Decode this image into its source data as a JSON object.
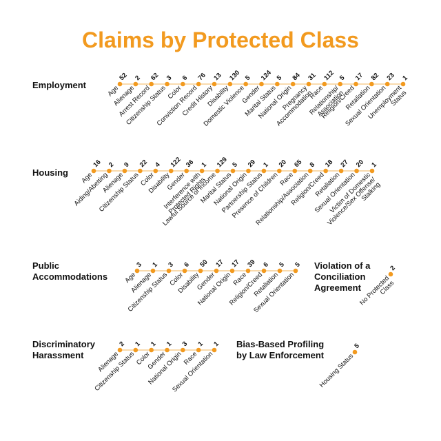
{
  "title": "Claims by Protected Class",
  "colors": {
    "accent": "#f29a1f",
    "line": "#f5c47a",
    "text": "#111111"
  },
  "chart_data": {
    "type": "dot-plot",
    "title": "Claims by Protected Class",
    "groups": [
      {
        "name": "Employment",
        "label_lines": [
          "Employment"
        ],
        "points": [
          {
            "label_lines": [
              "Age"
            ],
            "value": 52
          },
          {
            "label_lines": [
              "Alienage"
            ],
            "value": 2
          },
          {
            "label_lines": [
              "Arrest Record"
            ],
            "value": 62
          },
          {
            "label_lines": [
              "Citizenship Status"
            ],
            "value": 3
          },
          {
            "label_lines": [
              "Color"
            ],
            "value": 6
          },
          {
            "label_lines": [
              "Conviction Record"
            ],
            "value": 76
          },
          {
            "label_lines": [
              "Credit History"
            ],
            "value": 13
          },
          {
            "label_lines": [
              "Disability"
            ],
            "value": 130
          },
          {
            "label_lines": [
              "Domestic Violence"
            ],
            "value": 5
          },
          {
            "label_lines": [
              "Gender"
            ],
            "value": 124
          },
          {
            "label_lines": [
              "Marital Status"
            ],
            "value": 5
          },
          {
            "label_lines": [
              "National Origin"
            ],
            "value": 84
          },
          {
            "label_lines": [
              "Pregnancy",
              "Accommodation"
            ],
            "value": 31
          },
          {
            "label_lines": [
              "Race"
            ],
            "value": 112
          },
          {
            "label_lines": [
              "Relationship/",
              "Association"
            ],
            "value": 5
          },
          {
            "label_lines": [
              "Religion/Creed"
            ],
            "value": 17
          },
          {
            "label_lines": [
              "Retaliation"
            ],
            "value": 82
          },
          {
            "label_lines": [
              "Sexual Orientation"
            ],
            "value": 23
          },
          {
            "label_lines": [
              "Unemployment",
              "Status"
            ],
            "value": 1
          }
        ]
      },
      {
        "name": "Housing",
        "label_lines": [
          "Housing"
        ],
        "points": [
          {
            "label_lines": [
              "Age"
            ],
            "value": 16
          },
          {
            "label_lines": [
              "Aiding/Abetting"
            ],
            "value": 2
          },
          {
            "label_lines": [
              "Alienage"
            ],
            "value": 9
          },
          {
            "label_lines": [
              "Citizenship Status"
            ],
            "value": 22
          },
          {
            "label_lines": [
              "Color"
            ],
            "value": 4
          },
          {
            "label_lines": [
              "Disability"
            ],
            "value": 122
          },
          {
            "label_lines": [
              "Gender"
            ],
            "value": 36
          },
          {
            "label_lines": [
              "Interference with",
              "Protected Rights"
            ],
            "value": 1
          },
          {
            "label_lines": [
              "Lawful Source of Income"
            ],
            "value": 129
          },
          {
            "label_lines": [
              "Marital Status"
            ],
            "value": 5
          },
          {
            "label_lines": [
              "National Origin"
            ],
            "value": 29
          },
          {
            "label_lines": [
              "Partnership Status"
            ],
            "value": 1
          },
          {
            "label_lines": [
              "Presence of Children"
            ],
            "value": 20
          },
          {
            "label_lines": [
              "Race"
            ],
            "value": 65
          },
          {
            "label_lines": [
              "Relationship/Association"
            ],
            "value": 8
          },
          {
            "label_lines": [
              "Religion/Creed"
            ],
            "value": 18
          },
          {
            "label_lines": [
              "Retaliation"
            ],
            "value": 27
          },
          {
            "label_lines": [
              "Sexual Orientation"
            ],
            "value": 20
          },
          {
            "label_lines": [
              "Victim of Domestic",
              "Violence/Sex Offense/",
              "Stalking"
            ],
            "value": 1
          }
        ]
      },
      {
        "name": "Public Accommodations",
        "label_lines": [
          "Public",
          "Accommodations"
        ],
        "points": [
          {
            "label_lines": [
              "Age"
            ],
            "value": 3
          },
          {
            "label_lines": [
              "Alienage"
            ],
            "value": 1
          },
          {
            "label_lines": [
              "Citizenship Status"
            ],
            "value": 3
          },
          {
            "label_lines": [
              "Color"
            ],
            "value": 6
          },
          {
            "label_lines": [
              "Disability"
            ],
            "value": 50
          },
          {
            "label_lines": [
              "Gender"
            ],
            "value": 17
          },
          {
            "label_lines": [
              "National Origin"
            ],
            "value": 17
          },
          {
            "label_lines": [
              "Race"
            ],
            "value": 39
          },
          {
            "label_lines": [
              "Religion/Creed"
            ],
            "value": 6
          },
          {
            "label_lines": [
              "Retaliation"
            ],
            "value": 5
          },
          {
            "label_lines": [
              "Sexual Orientation"
            ],
            "value": 5
          }
        ]
      },
      {
        "name": "Violation of a Conciliation Agreement",
        "label_lines": [
          "Violation of a",
          "Conciliation",
          "Agreement"
        ],
        "points": [
          {
            "label_lines": [
              "No Protected",
              "Class"
            ],
            "value": 2
          }
        ]
      },
      {
        "name": "Discriminatory Harassment",
        "label_lines": [
          "Discriminatory",
          "Harassment"
        ],
        "points": [
          {
            "label_lines": [
              "Alienage"
            ],
            "value": 2
          },
          {
            "label_lines": [
              "Citizenship Status"
            ],
            "value": 1
          },
          {
            "label_lines": [
              "Color"
            ],
            "value": 1
          },
          {
            "label_lines": [
              "Gender"
            ],
            "value": 1
          },
          {
            "label_lines": [
              "National Origin"
            ],
            "value": 3
          },
          {
            "label_lines": [
              "Race"
            ],
            "value": 1
          },
          {
            "label_lines": [
              "Sexual Orientation"
            ],
            "value": 1
          }
        ]
      },
      {
        "name": "Bias-Based Profiling by Law Enforcement",
        "label_lines": [
          "Bias-Based Profiling",
          "by Law Enforcement"
        ],
        "points": [
          {
            "label_lines": [
              "Housing Status"
            ],
            "value": 5
          }
        ]
      }
    ]
  }
}
